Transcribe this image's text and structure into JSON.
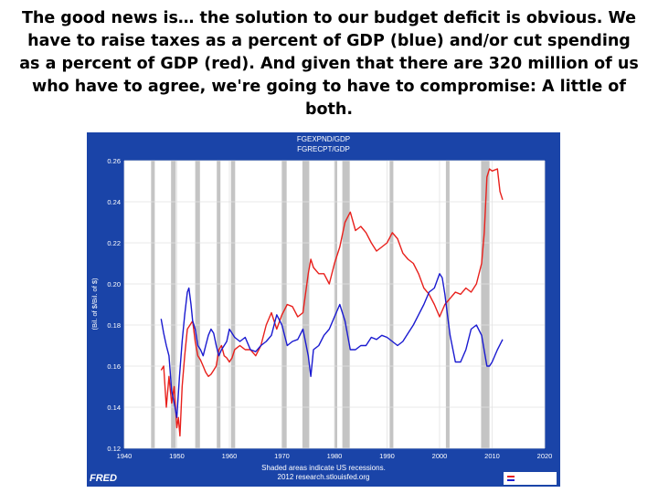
{
  "slide": {
    "title": "The good news is… the solution to our budget deficit is obvious. We have to raise taxes as a percent of GDP (blue) and/or cut spending as a percent of GDP (red). And given that there are 320 million of us who have to agree, we're going to have to compromise: A little of both."
  },
  "chart_data": {
    "type": "line",
    "title": "FGEXPND/GDP",
    "subtitle": "FGRECPT/GDP",
    "xlabel": "",
    "ylabel": "(Bil. of $/Bil. of $)",
    "xlim": [
      1940,
      2020
    ],
    "ylim": [
      0.12,
      0.26
    ],
    "xticks": [
      1940,
      1950,
      1960,
      1970,
      1980,
      1990,
      2000,
      2010,
      2020
    ],
    "yticks": [
      0.12,
      0.14,
      0.16,
      0.18,
      0.2,
      0.22,
      0.24,
      0.26
    ],
    "ytick_labels": [
      "0.12",
      "0.14",
      "0.16",
      "0.18",
      "0.20",
      "0.22",
      "0.24",
      "0.26"
    ],
    "footnote": [
      "Shaded areas indicate US recessions.",
      "2012 research.stlouisfed.org"
    ],
    "source_logo": "FRED",
    "recessions": [
      [
        1945.1,
        1945.8
      ],
      [
        1948.9,
        1949.8
      ],
      [
        1953.5,
        1954.4
      ],
      [
        1957.6,
        1958.3
      ],
      [
        1960.3,
        1961.1
      ],
      [
        1969.9,
        1970.9
      ],
      [
        1973.9,
        1975.2
      ],
      [
        1980.0,
        1980.5
      ],
      [
        1981.5,
        1982.9
      ],
      [
        1990.5,
        1991.2
      ],
      [
        2001.2,
        2001.9
      ],
      [
        2007.9,
        2009.5
      ]
    ],
    "series": [
      {
        "name": "FGEXPND/GDP",
        "color": "#e8201c",
        "x": [
          1947,
          1947.5,
          1948,
          1948.5,
          1949,
          1949.5,
          1950,
          1950.3,
          1950.6,
          1951,
          1951.5,
          1952,
          1952.5,
          1953,
          1953.5,
          1954,
          1954.5,
          1955,
          1955.5,
          1956,
          1956.5,
          1957,
          1957.5,
          1958,
          1958.5,
          1959,
          1959.5,
          1960,
          1960.5,
          1961,
          1961.5,
          1962,
          1963,
          1964,
          1965,
          1966,
          1967,
          1968,
          1969,
          1970,
          1971,
          1972,
          1973,
          1974,
          1975,
          1975.5,
          1976,
          1977,
          1978,
          1979,
          1980,
          1981,
          1982,
          1983,
          1984,
          1985,
          1986,
          1987,
          1988,
          1989,
          1990,
          1991,
          1992,
          1993,
          1994,
          1995,
          1996,
          1997,
          1998,
          1999,
          2000,
          2001,
          2002,
          2003,
          2004,
          2005,
          2006,
          2007,
          2008,
          2008.5,
          2009,
          2009.5,
          2010,
          2011,
          2011.5,
          2012
        ],
        "values": [
          0.158,
          0.16,
          0.14,
          0.155,
          0.142,
          0.15,
          0.13,
          0.135,
          0.126,
          0.15,
          0.165,
          0.178,
          0.18,
          0.182,
          0.172,
          0.165,
          0.163,
          0.16,
          0.157,
          0.155,
          0.156,
          0.158,
          0.16,
          0.168,
          0.17,
          0.165,
          0.164,
          0.162,
          0.164,
          0.168,
          0.169,
          0.17,
          0.168,
          0.168,
          0.165,
          0.17,
          0.18,
          0.186,
          0.178,
          0.185,
          0.19,
          0.189,
          0.184,
          0.186,
          0.205,
          0.212,
          0.208,
          0.205,
          0.205,
          0.2,
          0.21,
          0.218,
          0.23,
          0.235,
          0.226,
          0.228,
          0.225,
          0.22,
          0.216,
          0.218,
          0.22,
          0.225,
          0.222,
          0.215,
          0.212,
          0.21,
          0.205,
          0.198,
          0.195,
          0.19,
          0.184,
          0.19,
          0.193,
          0.196,
          0.195,
          0.198,
          0.196,
          0.2,
          0.21,
          0.225,
          0.252,
          0.256,
          0.255,
          0.256,
          0.245,
          0.241
        ]
      },
      {
        "name": "FGRECPT/GDP",
        "color": "#1a1ad0",
        "x": [
          1947,
          1947.5,
          1948,
          1948.5,
          1949,
          1949.5,
          1950,
          1950.5,
          1951,
          1951.5,
          1952,
          1952.3,
          1952.7,
          1953,
          1953.5,
          1954,
          1954.5,
          1955,
          1955.5,
          1956,
          1956.5,
          1957,
          1957.5,
          1958,
          1958.5,
          1959,
          1959.5,
          1960,
          1961,
          1962,
          1963,
          1964,
          1965,
          1966,
          1967,
          1968,
          1969,
          1970,
          1971,
          1972,
          1973,
          1974,
          1975,
          1975.5,
          1976,
          1977,
          1978,
          1979,
          1980,
          1981,
          1982,
          1983,
          1984,
          1985,
          1986,
          1987,
          1988,
          1989,
          1990,
          1991,
          1992,
          1993,
          1994,
          1995,
          1996,
          1997,
          1998,
          1999,
          2000,
          2000.5,
          2001,
          2001.5,
          2002,
          2003,
          2004,
          2005,
          2006,
          2007,
          2008,
          2009,
          2009.5,
          2010,
          2011,
          2012
        ],
        "values": [
          0.183,
          0.176,
          0.17,
          0.165,
          0.148,
          0.142,
          0.135,
          0.155,
          0.172,
          0.185,
          0.196,
          0.198,
          0.19,
          0.182,
          0.178,
          0.17,
          0.168,
          0.165,
          0.17,
          0.175,
          0.178,
          0.176,
          0.17,
          0.165,
          0.168,
          0.17,
          0.172,
          0.178,
          0.174,
          0.172,
          0.174,
          0.168,
          0.167,
          0.17,
          0.172,
          0.175,
          0.185,
          0.18,
          0.17,
          0.172,
          0.173,
          0.178,
          0.165,
          0.155,
          0.168,
          0.17,
          0.175,
          0.178,
          0.184,
          0.19,
          0.182,
          0.168,
          0.168,
          0.17,
          0.17,
          0.174,
          0.173,
          0.175,
          0.174,
          0.172,
          0.17,
          0.172,
          0.176,
          0.18,
          0.185,
          0.19,
          0.196,
          0.198,
          0.205,
          0.203,
          0.195,
          0.185,
          0.175,
          0.162,
          0.162,
          0.168,
          0.178,
          0.18,
          0.175,
          0.16,
          0.16,
          0.162,
          0.168,
          0.173
        ]
      }
    ]
  }
}
